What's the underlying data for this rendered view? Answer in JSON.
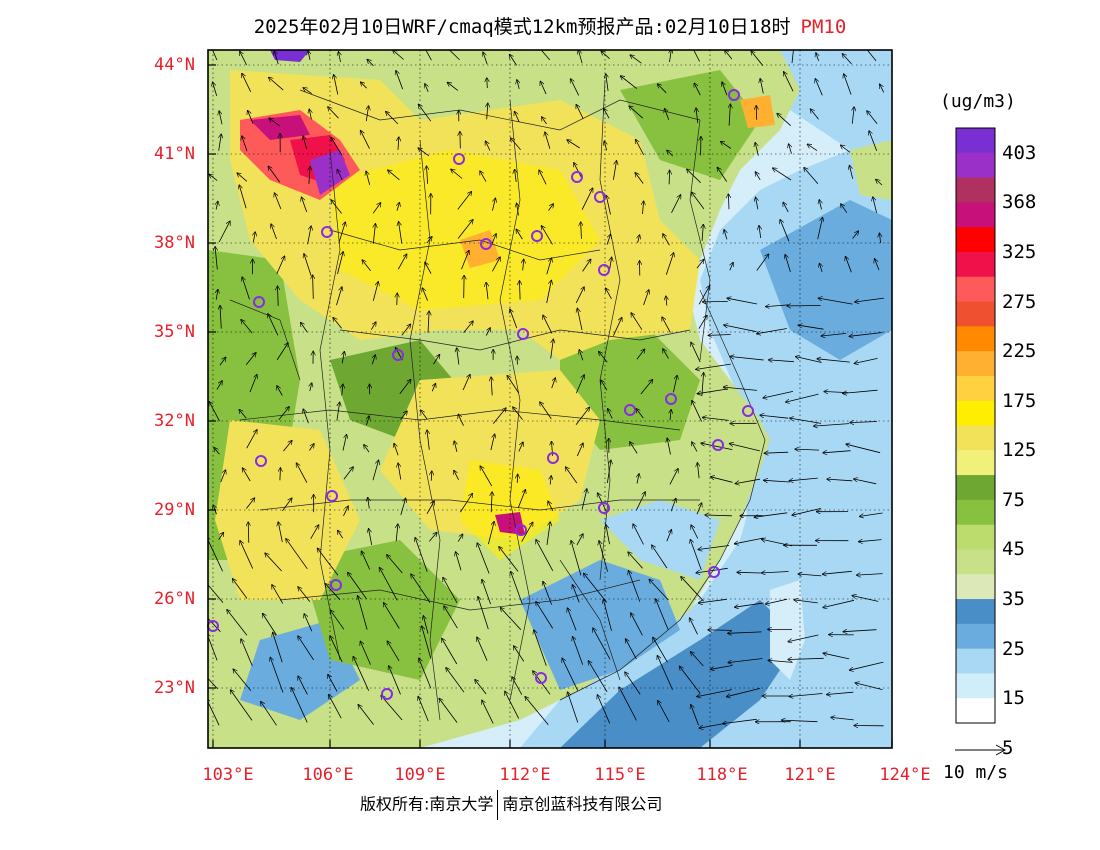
{
  "title": {
    "main": "2025年02月10日WRF/cmaq模式12km预报产品:02月10日18时",
    "pollutant": "PM10"
  },
  "map": {
    "lat_labels": [
      "44°N",
      "41°N",
      "38°N",
      "35°N",
      "32°N",
      "29°N",
      "26°N",
      "23°N"
    ],
    "lon_labels": [
      "103°E",
      "106°E",
      "109°E",
      "112°E",
      "115°E",
      "118°E",
      "121°E",
      "124°E"
    ]
  },
  "legend": {
    "unit": "(ug/m3)",
    "labels": [
      "403",
      "368",
      "325",
      "275",
      "225",
      "175",
      "125",
      "75",
      "45",
      "35",
      "25",
      "15",
      "5"
    ],
    "colors": [
      "#7a2fd2",
      "#9b30c9",
      "#b03060",
      "#c8107a",
      "#ff0000",
      "#f0104a",
      "#ff5a5a",
      "#ee5030",
      "#ff8a00",
      "#ffb030",
      "#ffd040",
      "#ffee00",
      "#f2e25a",
      "#f0f07a",
      "#6ea832",
      "#88c040",
      "#bcdc6e",
      "#c8e088",
      "#dce8b8",
      "#4a8ec8",
      "#6aacde",
      "#a8d8f4",
      "#d0eefa",
      "#ffffff"
    ]
  },
  "wind": {
    "scale_label": "10 m/s"
  },
  "footer": {
    "copyright": "版权所有:南京大学",
    "company": "南京创蓝科技有限公司"
  }
}
